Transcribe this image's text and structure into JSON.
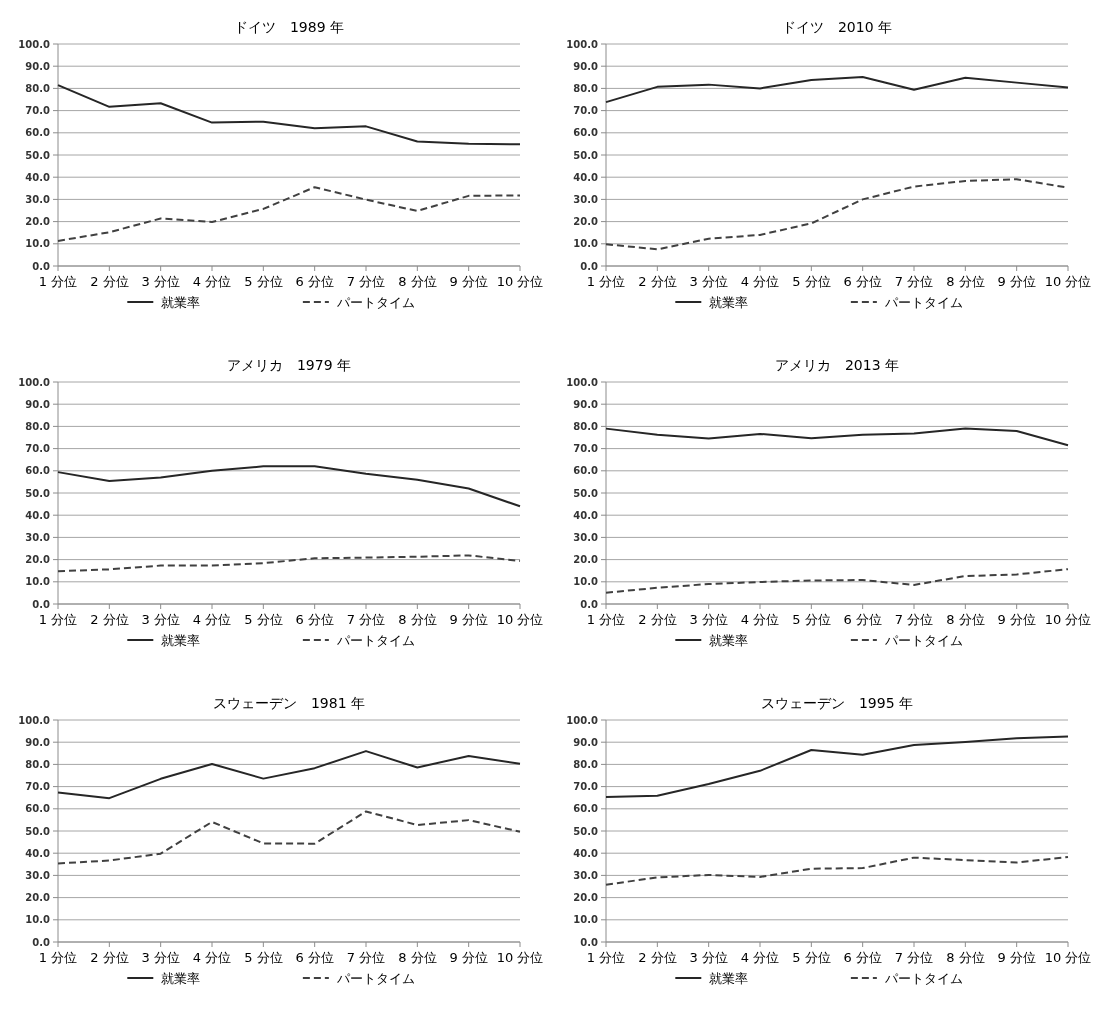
{
  "chart_data": [
    {
      "type": "line",
      "title": "ドイツ　1989 年",
      "categories": [
        "1 分位",
        "2 分位",
        "3 分位",
        "4 分位",
        "5 分位",
        "6 分位",
        "7 分位",
        "8 分位",
        "9 分位",
        "10 分位"
      ],
      "series": [
        {
          "name": "就業率",
          "color": "#262626",
          "line_style": "solid",
          "values": [
            81.5,
            71.7,
            73.3,
            64.6,
            65.0,
            62.0,
            62.9,
            56.1,
            55.1,
            54.8
          ]
        },
        {
          "name": "パートタイム",
          "color": "#404040",
          "line_style": "dashed",
          "values": [
            11.3,
            15.2,
            21.4,
            19.8,
            25.7,
            35.5,
            29.9,
            24.8,
            31.6,
            31.8
          ]
        }
      ],
      "ylim": [
        0,
        100
      ],
      "yticks": [
        {
          "value": 0,
          "label": "0.0"
        },
        {
          "value": 10,
          "label": "10.0"
        },
        {
          "value": 20,
          "label": "20.0"
        },
        {
          "value": 30,
          "label": "30.0"
        },
        {
          "value": 40,
          "label": "40.0"
        },
        {
          "value": 50,
          "label": "50.0"
        },
        {
          "value": 60,
          "label": "60.0"
        },
        {
          "value": 70,
          "label": "70.0"
        },
        {
          "value": 80,
          "label": "80.0"
        },
        {
          "value": 90,
          "label": "90.0"
        },
        {
          "value": 100,
          "label": "100.0"
        }
      ],
      "grid": "y",
      "legend": "bottom"
    },
    {
      "type": "line",
      "title": "ドイツ　2010 年",
      "categories": [
        "1 分位",
        "2 分位",
        "3 分位",
        "4 分位",
        "5 分位",
        "6 分位",
        "7 分位",
        "8 分位",
        "9 分位",
        "10 分位"
      ],
      "series": [
        {
          "name": "就業率",
          "color": "#262626",
          "line_style": "solid",
          "values": [
            73.8,
            80.7,
            81.7,
            80.0,
            83.8,
            85.1,
            79.4,
            84.8,
            82.6,
            80.4
          ]
        },
        {
          "name": "パートタイム",
          "color": "#404040",
          "line_style": "dashed",
          "values": [
            9.8,
            7.5,
            12.3,
            14.0,
            19.2,
            30.0,
            35.8,
            38.3,
            39.1,
            35.3
          ]
        }
      ],
      "ylim": [
        0,
        100
      ],
      "yticks": [
        {
          "value": 0,
          "label": "0.0"
        },
        {
          "value": 10,
          "label": "10.0"
        },
        {
          "value": 20,
          "label": "20.0"
        },
        {
          "value": 30,
          "label": "30.0"
        },
        {
          "value": 40,
          "label": "40.0"
        },
        {
          "value": 50,
          "label": "50.0"
        },
        {
          "value": 60,
          "label": "60.0"
        },
        {
          "value": 70,
          "label": "70.0"
        },
        {
          "value": 80,
          "label": "80.0"
        },
        {
          "value": 90,
          "label": "90.0"
        },
        {
          "value": 100,
          "label": "100.0"
        }
      ],
      "grid": "y",
      "legend": "bottom"
    },
    {
      "type": "line",
      "title": "アメリカ　1979 年",
      "categories": [
        "1 分位",
        "2 分位",
        "3 分位",
        "4 分位",
        "5 分位",
        "6 分位",
        "7 分位",
        "8 分位",
        "9 分位",
        "10 分位"
      ],
      "series": [
        {
          "name": "就業率",
          "color": "#262626",
          "line_style": "solid",
          "values": [
            59.4,
            55.4,
            57.0,
            60.0,
            62.0,
            62.0,
            58.7,
            56.0,
            52.0,
            44.0
          ]
        },
        {
          "name": "パートタイム",
          "color": "#404040",
          "line_style": "dashed",
          "values": [
            14.8,
            15.6,
            17.3,
            17.3,
            18.4,
            20.6,
            20.9,
            21.3,
            21.9,
            19.4
          ]
        }
      ],
      "ylim": [
        0,
        100
      ],
      "yticks": [
        {
          "value": 0,
          "label": "0.0"
        },
        {
          "value": 10,
          "label": "10.0"
        },
        {
          "value": 20,
          "label": "20.0"
        },
        {
          "value": 30,
          "label": "30.0"
        },
        {
          "value": 40,
          "label": "40.0"
        },
        {
          "value": 50,
          "label": "50.0"
        },
        {
          "value": 60,
          "label": "60.0"
        },
        {
          "value": 70,
          "label": "70.0"
        },
        {
          "value": 80,
          "label": "80.0"
        },
        {
          "value": 90,
          "label": "90.0"
        },
        {
          "value": 100,
          "label": "100.0"
        }
      ],
      "grid": "y",
      "legend": "bottom"
    },
    {
      "type": "line",
      "title": "アメリカ　2013 年",
      "categories": [
        "1 分位",
        "2 分位",
        "3 分位",
        "4 分位",
        "5 分位",
        "6 分位",
        "7 分位",
        "8 分位",
        "9 分位",
        "10 分位"
      ],
      "series": [
        {
          "name": "就業率",
          "color": "#262626",
          "line_style": "solid",
          "values": [
            79.0,
            76.2,
            74.5,
            76.6,
            74.7,
            76.2,
            76.8,
            79.0,
            77.9,
            71.5
          ]
        },
        {
          "name": "パートタイム",
          "color": "#404040",
          "line_style": "dashed",
          "values": [
            5.1,
            7.3,
            9.0,
            9.9,
            10.6,
            10.8,
            8.6,
            12.6,
            13.3,
            15.7
          ]
        }
      ],
      "ylim": [
        0,
        100
      ],
      "yticks": [
        {
          "value": 0,
          "label": "0.0"
        },
        {
          "value": 10,
          "label": "10.0"
        },
        {
          "value": 20,
          "label": "20.0"
        },
        {
          "value": 30,
          "label": "30.0"
        },
        {
          "value": 40,
          "label": "40.0"
        },
        {
          "value": 50,
          "label": "50.0"
        },
        {
          "value": 60,
          "label": "60.0"
        },
        {
          "value": 70,
          "label": "70.0"
        },
        {
          "value": 80,
          "label": "80.0"
        },
        {
          "value": 90,
          "label": "90.0"
        },
        {
          "value": 100,
          "label": "100.0"
        }
      ],
      "grid": "y",
      "legend": "bottom"
    },
    {
      "type": "line",
      "title": "スウェーデン　1981 年",
      "categories": [
        "1 分位",
        "2 分位",
        "3 分位",
        "4 分位",
        "5 分位",
        "6 分位",
        "7 分位",
        "8 分位",
        "9 分位",
        "10 分位"
      ],
      "series": [
        {
          "name": "就業率",
          "color": "#262626",
          "line_style": "solid",
          "values": [
            67.3,
            64.8,
            73.5,
            80.2,
            73.6,
            78.3,
            86.0,
            78.6,
            83.8,
            80.3
          ]
        },
        {
          "name": "パートタイム",
          "color": "#404040",
          "line_style": "dashed",
          "values": [
            35.4,
            36.7,
            39.8,
            54.1,
            44.4,
            44.3,
            58.8,
            52.7,
            54.9,
            49.7
          ]
        }
      ],
      "ylim": [
        0,
        100
      ],
      "yticks": [
        {
          "value": 0,
          "label": "0.0"
        },
        {
          "value": 10,
          "label": "10.0"
        },
        {
          "value": 20,
          "label": "20.0"
        },
        {
          "value": 30,
          "label": "30.0"
        },
        {
          "value": 40,
          "label": "40.0"
        },
        {
          "value": 50,
          "label": "50.0"
        },
        {
          "value": 60,
          "label": "60.0"
        },
        {
          "value": 70,
          "label": "70.0"
        },
        {
          "value": 80,
          "label": "80.0"
        },
        {
          "value": 90,
          "label": "90.0"
        },
        {
          "value": 100,
          "label": "100.0"
        }
      ],
      "grid": "y",
      "legend": "bottom"
    },
    {
      "type": "line",
      "title": "スウェーデン　1995 年",
      "categories": [
        "1 分位",
        "2 分位",
        "3 分位",
        "4 分位",
        "5 分位",
        "6 分位",
        "7 分位",
        "8 分位",
        "9 分位",
        "10 分位"
      ],
      "series": [
        {
          "name": "就業率",
          "color": "#262626",
          "line_style": "solid",
          "values": [
            65.3,
            65.9,
            71.2,
            77.1,
            86.5,
            84.3,
            88.7,
            90.1,
            91.8,
            92.6
          ]
        },
        {
          "name": "パートタイム",
          "color": "#404040",
          "line_style": "dashed",
          "values": [
            25.8,
            29.1,
            30.2,
            29.3,
            33.0,
            33.3,
            38.0,
            36.9,
            35.8,
            38.3
          ]
        }
      ],
      "ylim": [
        0,
        100
      ],
      "yticks": [
        {
          "value": 0,
          "label": "0.0"
        },
        {
          "value": 10,
          "label": "10.0"
        },
        {
          "value": 20,
          "label": "20.0"
        },
        {
          "value": 30,
          "label": "30.0"
        },
        {
          "value": 40,
          "label": "40.0"
        },
        {
          "value": 50,
          "label": "50.0"
        },
        {
          "value": 60,
          "label": "60.0"
        },
        {
          "value": 70,
          "label": "70.0"
        },
        {
          "value": 80,
          "label": "80.0"
        },
        {
          "value": 90,
          "label": "90.0"
        },
        {
          "value": 100,
          "label": "100.0"
        }
      ],
      "grid": "y",
      "legend": "bottom"
    }
  ]
}
